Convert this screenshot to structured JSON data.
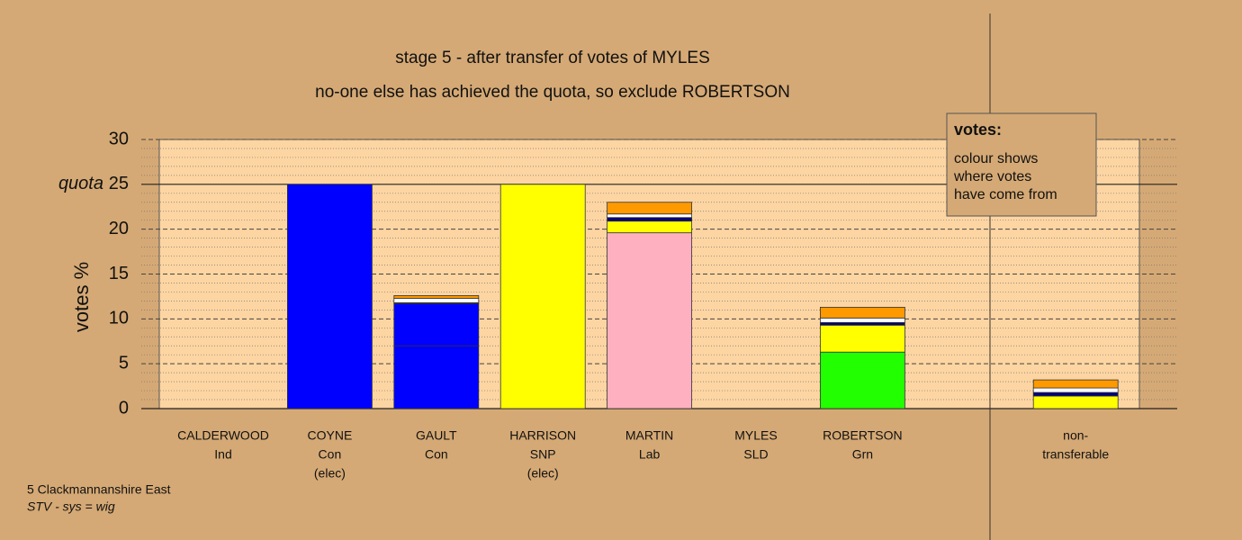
{
  "chart_data": {
    "type": "stacked_bar",
    "title": "stage 5 - after transfer of votes of MYLES",
    "subtitle": "no-one else has achieved the quota, so exclude ROBERTSON",
    "y_label": "votes %",
    "quota_label": "quota",
    "quota": 25,
    "categories": [
      [
        "CALDERWOOD",
        "Ind"
      ],
      [
        "COYNE",
        "Con",
        "(elec)"
      ],
      [
        "GAULT",
        "Con"
      ],
      [
        "HARRISON",
        "SNP",
        "(elec)"
      ],
      [
        "MARTIN",
        "Lab"
      ],
      [
        "MYLES",
        "SLD"
      ],
      [
        "ROBERTSON",
        "Grn"
      ],
      null,
      [
        "non-",
        "transferable"
      ]
    ],
    "series": [
      {
        "color": "#0000ff",
        "values": [
          null,
          25,
          7.0,
          null,
          null,
          null,
          null,
          null,
          null
        ]
      },
      {
        "color": "#ffff00",
        "values": [
          null,
          null,
          null,
          25,
          null,
          null,
          null,
          null,
          null
        ]
      },
      {
        "color": "#ffb0c0",
        "values": [
          null,
          null,
          null,
          null,
          19.6,
          null,
          null,
          null,
          null
        ]
      },
      {
        "color": "#22ff00",
        "values": [
          null,
          null,
          null,
          null,
          null,
          null,
          6.3,
          null,
          null
        ]
      },
      {
        "color": "#0000ff",
        "values": [
          null,
          null,
          4.7,
          null,
          null,
          null,
          null,
          null,
          null
        ]
      },
      {
        "color": "#ffff00",
        "values": [
          null,
          null,
          null,
          null,
          1.3,
          null,
          3.0,
          null,
          1.4
        ]
      },
      {
        "color": "#000080",
        "values": [
          null,
          null,
          0.1,
          null,
          0.4,
          null,
          0.3,
          null,
          0.4
        ]
      },
      {
        "color": "#ffffff",
        "values": [
          null,
          null,
          0.5,
          null,
          0.4,
          null,
          0.5,
          null,
          0.5
        ]
      },
      {
        "color": "#ff9900",
        "values": [
          null,
          null,
          0.3,
          null,
          1.3,
          null,
          1.2,
          null,
          0.9
        ]
      }
    ],
    "ylim": [
      0,
      30
    ],
    "yticks": [
      0,
      5,
      10,
      15,
      20,
      25,
      30
    ],
    "minor_yticks": [
      1,
      2,
      3,
      4,
      6,
      7,
      8,
      9,
      11,
      12,
      13,
      14,
      16,
      17,
      18,
      19,
      21,
      22,
      23,
      24,
      26,
      27,
      28,
      29
    ],
    "grid": true,
    "legend_box": {
      "heading": "votes:",
      "lines": [
        "colour shows",
        "where votes",
        "have come from"
      ]
    },
    "footer": [
      "5 Clackmannanshire East",
      "STV - sys = wig"
    ]
  }
}
